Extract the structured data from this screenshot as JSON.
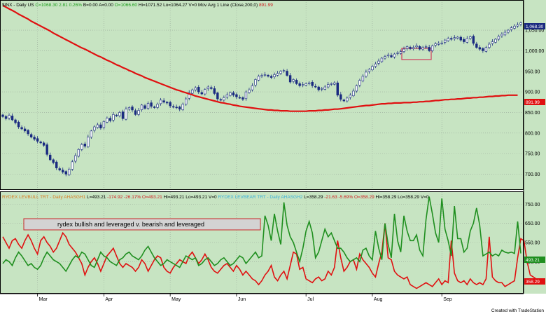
{
  "chart_data": [
    {
      "type": "candlestick",
      "symbol_line": "$INX - Daily  US",
      "header_values": [
        {
          "text": "C=1068.30",
          "color": "#1d9e1d"
        },
        {
          "text": "2.81",
          "color": "#1d9e1d"
        },
        {
          "text": "0.26%",
          "color": "#1d9e1d"
        },
        {
          "text": "B=0.00",
          "color": "#000000"
        },
        {
          "text": "A=0.00",
          "color": "#000000"
        },
        {
          "text": "O=1066.60",
          "color": "#1d9e1d"
        },
        {
          "text": "Hi=1071.52",
          "color": "#000000"
        },
        {
          "text": "Lo=1064.27",
          "color": "#000000"
        },
        {
          "text": "V=0",
          "color": "#000000"
        },
        {
          "text": "Mov Avg 1 Line (Close,200,0)",
          "color": "#000000"
        },
        {
          "text": "891.99",
          "color": "#d02020"
        }
      ],
      "ylim": [
        665,
        1120
      ],
      "y_ticks": [
        700,
        750,
        800,
        850,
        900,
        950,
        1000,
        1050
      ],
      "y_tick_labels": [
        "700.00",
        "750.00",
        "800.00",
        "850.00",
        "900.00",
        "950.00",
        "1,000.00",
        "1,050.00"
      ],
      "last_price_label": "1,068.30",
      "ma_label": "891.99",
      "ma_name": "Mov Avg 1 Line (Close,200,0)",
      "ma_color": "#e01010",
      "candle_color": "#1a2a80",
      "closes": [
        840,
        835,
        843,
        832,
        825,
        815,
        810,
        805,
        798,
        790,
        785,
        780,
        776,
        770,
        748,
        735,
        728,
        715,
        710,
        705,
        700,
        712,
        730,
        745,
        760,
        772,
        768,
        790,
        805,
        815,
        820,
        812,
        828,
        836,
        830,
        845,
        842,
        850,
        835,
        858,
        862,
        856,
        845,
        855,
        868,
        860,
        872,
        865,
        862,
        870,
        880,
        875,
        873,
        866,
        863,
        862,
        858,
        870,
        883,
        898,
        905,
        910,
        900,
        895,
        906,
        912,
        908,
        896,
        883,
        880,
        886,
        893,
        898,
        892,
        888,
        886,
        882,
        900,
        905,
        915,
        930,
        938,
        940,
        942,
        938,
        935,
        942,
        945,
        950,
        952,
        940,
        924,
        930,
        920,
        915,
        918,
        920,
        922,
        915,
        912,
        905,
        908,
        912,
        918,
        920,
        922,
        892,
        882,
        878,
        885,
        892,
        902,
        915,
        928,
        938,
        948,
        955,
        962,
        968,
        975,
        982,
        986,
        990,
        985,
        992,
        995,
        998,
        1004,
        1010,
        1005,
        1008,
        1012,
        1004,
        1008,
        1010,
        1000,
        1012,
        1017,
        1018,
        1019,
        1026,
        1030,
        1028,
        1032,
        1033,
        1026,
        1022,
        1030,
        1034,
        1018,
        1008,
        1004,
        1000,
        1008,
        1016,
        1022,
        1028,
        1035,
        1040,
        1045,
        1050,
        1056,
        1060,
        1063,
        1068
      ],
      "ma": [
        1110,
        1106,
        1102,
        1098,
        1094,
        1089,
        1085,
        1081,
        1077,
        1072,
        1068,
        1064,
        1060,
        1056,
        1052,
        1048,
        1043,
        1039,
        1035,
        1031,
        1027,
        1023,
        1019,
        1015,
        1011,
        1007,
        1004,
        1000,
        996,
        992,
        988,
        985,
        981,
        977,
        974,
        970,
        966,
        963,
        959,
        956,
        952,
        949,
        945,
        942,
        939,
        935,
        932,
        929,
        926,
        923,
        920,
        917,
        914,
        911,
        908,
        905,
        903,
        900,
        898,
        895,
        893,
        890,
        888,
        886,
        884,
        882,
        880,
        878,
        876,
        874,
        873,
        871,
        870,
        868,
        867,
        865,
        864,
        863,
        862,
        861,
        860,
        859,
        858,
        857,
        856,
        856,
        855,
        855,
        854,
        854,
        854,
        853,
        853,
        853,
        853,
        853,
        853,
        854,
        854,
        854,
        855,
        855,
        856,
        856,
        857,
        858,
        858,
        859,
        860,
        861,
        862,
        863,
        864,
        865,
        866,
        867,
        867,
        868,
        869,
        870,
        871,
        871,
        872,
        872,
        873,
        873,
        873,
        874,
        874,
        874,
        875,
        875,
        876,
        876,
        877,
        877,
        878,
        879,
        879,
        880,
        881,
        881,
        882,
        882,
        883,
        883,
        884,
        885,
        885,
        886,
        886,
        887,
        887,
        888,
        889,
        889,
        890,
        890,
        891,
        891,
        892,
        892,
        892,
        892
      ]
    },
    {
      "type": "line",
      "header_left": [
        {
          "text": "RYDEX LEVBULL TRT - Daily  AHASGH1",
          "color": "#d87a20"
        },
        {
          "text": "L=493.21",
          "color": "#000000"
        },
        {
          "text": "-174.92",
          "color": "#d02020"
        },
        {
          "text": "-26.17%",
          "color": "#d02020"
        },
        {
          "text": "O=493.21",
          "color": "#d02020"
        },
        {
          "text": "Hi=493.21",
          "color": "#000000"
        },
        {
          "text": "Lo=493.21",
          "color": "#000000"
        },
        {
          "text": "V=0",
          "color": "#000000"
        }
      ],
      "header_right": [
        {
          "text": "RYDEX LEVBEAR TRT - Daily  AHASGH2",
          "color": "#3ab0d8"
        },
        {
          "text": "L=358.29",
          "color": "#000000"
        },
        {
          "text": "-21.63",
          "color": "#d02020"
        },
        {
          "text": "-5.69%",
          "color": "#d02020"
        },
        {
          "text": "O=358.29",
          "color": "#d02020"
        },
        {
          "text": "Hi=358.29",
          "color": "#000000"
        },
        {
          "text": "Lo=358.29",
          "color": "#000000"
        },
        {
          "text": "V=0",
          "color": "#000000"
        }
      ],
      "annotation": "rydex bullish and leveraged v. bearish and leveraged",
      "ylim": [
        290,
        810
      ],
      "y_ticks": [
        450,
        550,
        650,
        750
      ],
      "y_tick_labels": [
        "450.00",
        "550.00",
        "650.00",
        "750.00"
      ],
      "series": [
        {
          "name": "RYDEX LEVBULL TRT",
          "color": "#1f8f1f",
          "last_label": "493.21",
          "values": [
            440,
            460,
            450,
            430,
            470,
            500,
            480,
            455,
            430,
            440,
            420,
            410,
            430,
            470,
            500,
            480,
            460,
            450,
            440,
            420,
            400,
            430,
            460,
            480,
            470,
            500,
            490,
            460,
            430,
            420,
            460,
            500,
            480,
            470,
            450,
            440,
            430,
            460,
            470,
            490,
            500,
            480,
            470,
            460,
            480,
            510,
            530,
            500,
            470,
            450,
            430,
            440,
            460,
            450,
            440,
            430,
            420,
            450,
            480,
            470,
            460,
            470,
            430,
            440,
            460,
            470,
            450,
            430,
            440,
            460,
            470,
            450,
            430,
            440,
            460,
            480,
            470,
            440,
            460,
            480,
            500,
            470,
            480,
            690,
            640,
            560,
            700,
            610,
            540,
            760,
            640,
            580,
            550,
            500,
            450,
            520,
            610,
            660,
            600,
            470,
            500,
            560,
            620,
            580,
            600,
            560,
            520,
            520,
            500,
            470,
            450,
            460,
            470,
            450,
            510,
            520,
            480,
            460,
            610,
            520,
            460,
            650,
            540,
            470,
            700,
            560,
            500,
            690,
            610,
            560,
            560,
            590,
            510,
            480,
            670,
            790,
            700,
            600,
            550,
            780,
            620,
            560,
            480,
            740,
            570,
            570,
            500,
            520,
            610,
            650,
            730,
            640,
            480,
            490,
            500,
            480,
            490,
            480,
            510,
            500,
            495,
            500,
            493,
            660,
            493
          ]
        },
        {
          "name": "RYDEX LEVBEAR TRT",
          "color": "#e01010",
          "last_label": "358.29",
          "values": [
            580,
            550,
            520,
            560,
            570,
            540,
            520,
            560,
            590,
            560,
            520,
            490,
            560,
            580,
            550,
            530,
            500,
            520,
            560,
            600,
            580,
            540,
            520,
            500,
            470,
            440,
            380,
            420,
            450,
            470,
            440,
            400,
            440,
            480,
            500,
            520,
            480,
            440,
            420,
            440,
            430,
            420,
            400,
            420,
            460,
            440,
            400,
            430,
            460,
            480,
            470,
            420,
            400,
            390,
            420,
            440,
            460,
            450,
            440,
            480,
            500,
            470,
            440,
            460,
            490,
            460,
            420,
            400,
            390,
            410,
            430,
            440,
            420,
            400,
            430,
            410,
            380,
            400,
            380,
            360,
            350,
            330,
            350,
            380,
            400,
            430,
            370,
            350,
            380,
            400,
            360,
            430,
            500,
            490,
            410,
            420,
            360,
            350,
            340,
            360,
            370,
            350,
            360,
            400,
            380,
            420,
            560,
            470,
            400,
            420,
            450,
            460,
            410,
            490,
            460,
            440,
            420,
            390,
            370,
            440,
            500,
            650,
            470,
            460,
            400,
            380,
            370,
            360,
            370,
            330,
            320,
            310,
            320,
            330,
            340,
            330,
            320,
            340,
            360,
            330,
            350,
            340,
            560,
            390,
            350,
            340,
            350,
            330,
            360,
            340,
            330,
            340,
            330,
            360,
            580,
            370,
            350,
            340,
            340,
            320,
            330,
            340,
            350,
            470,
            570,
            560,
            450,
            380,
            370,
            358
          ]
        }
      ]
    }
  ],
  "x_axis": {
    "months": [
      "Mar",
      "Apr",
      "May",
      "Jun",
      "Jul",
      "Aug",
      "Sep"
    ],
    "month_start_index": [
      11,
      32,
      53,
      74,
      96,
      117,
      139
    ]
  },
  "footer": {
    "credit": "Created with TradeStation"
  },
  "colors": {
    "plot_bg": "#c7e4c2",
    "frame": "#000000",
    "highlight_box": "#d03c5c",
    "annotation_box_fill": "#d3d3d3",
    "annotation_box_stroke": "#c82828"
  }
}
